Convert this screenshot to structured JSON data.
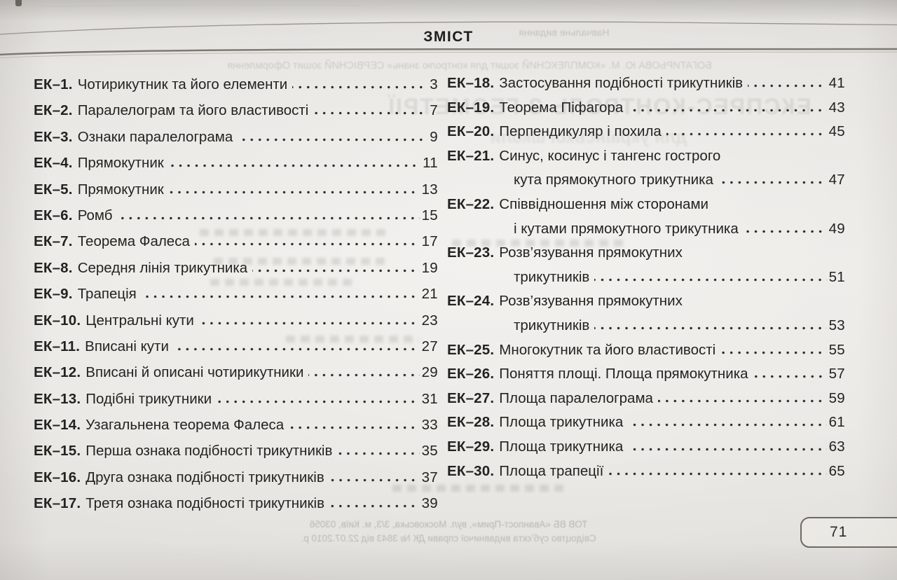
{
  "header": {
    "title": "ЗМІСТ"
  },
  "toc": {
    "left": [
      {
        "label": "ЕК–1.",
        "title": "Чотирикутник та його елементи",
        "page": "3"
      },
      {
        "label": "ЕК–2.",
        "title": "Паралелограм та його властивості",
        "page": "7"
      },
      {
        "label": "ЕК–3.",
        "title": "Ознаки паралелограма",
        "page": "9"
      },
      {
        "label": "ЕК–4.",
        "title": "Прямокутник",
        "page": "11"
      },
      {
        "label": "ЕК–5.",
        "title": "Прямокутник",
        "page": "13"
      },
      {
        "label": "ЕК–6.",
        "title": "Ромб",
        "page": "15"
      },
      {
        "label": "ЕК–7.",
        "title": "Теорема Фалеса",
        "page": "17"
      },
      {
        "label": "ЕК–8.",
        "title": "Середня лінія трикутника",
        "page": "19"
      },
      {
        "label": "ЕК–9.",
        "title": "Трапеція",
        "page": "21"
      },
      {
        "label": "ЕК–10.",
        "title": "Центральні кути",
        "page": "23"
      },
      {
        "label": "ЕК–11.",
        "title": "Вписані кути",
        "page": "27"
      },
      {
        "label": "ЕК–12.",
        "title": "Вписані й описані чотирикутники",
        "page": "29"
      },
      {
        "label": "ЕК–13.",
        "title": "Подібні трикутники",
        "page": "31"
      },
      {
        "label": "ЕК–14.",
        "title": "Узагальнена теорема Фалеса",
        "page": "33"
      },
      {
        "label": "ЕК–15.",
        "title": "Перша ознака подібності трикутників",
        "page": "35"
      },
      {
        "label": "ЕК–16.",
        "title": "Друга ознака подібності трикутників",
        "page": "37"
      },
      {
        "label": "ЕК–17.",
        "title": "Третя ознака подібності трикутників",
        "page": "39"
      }
    ],
    "right": [
      {
        "label": "ЕК–18.",
        "title": "Застосування подібності трикутників",
        "page": "41"
      },
      {
        "label": "ЕК–19.",
        "title": "Теорема Піфагора",
        "page": "43"
      },
      {
        "label": "ЕК–20.",
        "title": "Перпендикуляр і похила",
        "page": "45"
      },
      {
        "label": "ЕК–21.",
        "title": "Синус, косинус і тангенс гострого",
        "title2": "кута прямокутного трикутника",
        "page": "47"
      },
      {
        "label": "ЕК–22.",
        "title": "Співвідношення між сторонами",
        "title2": "і кутами прямокутного трикутника",
        "page": "49"
      },
      {
        "label": "ЕК–23.",
        "title": "Розв’язування прямокутних",
        "title2": "трикутників",
        "page": "51"
      },
      {
        "label": "ЕК–24.",
        "title": "Розв’язування прямокутних",
        "title2": "трикутників",
        "page": "53"
      },
      {
        "label": "ЕК–25.",
        "title": "Многокутник та його властивості",
        "page": "55"
      },
      {
        "label": "ЕК–26.",
        "title": "Поняття площі. Площа прямокутника",
        "page": "57"
      },
      {
        "label": "ЕК–27.",
        "title": "Площа паралелограма",
        "page": "59"
      },
      {
        "label": "ЕК–28.",
        "title": "Площа трикутника",
        "page": "61"
      },
      {
        "label": "ЕК–29.",
        "title": "Площа трикутника",
        "page": "63"
      },
      {
        "label": "ЕК–30.",
        "title": "Площа трапеції",
        "page": "65"
      }
    ]
  },
  "footer": {
    "page_number": "71"
  },
  "bleedthrough": {
    "top_small": "Навчальне видання",
    "authors_row": "БОГАТИРЬОВА Ю. М.  «КОМПЛЕКСНИЙ зошит для контролю знань»  СЕРВІСНИЙ зошит  Оформлення",
    "big_title": "ЕКСПРЕС-КОНТРОЛЬ З ГЕОМЕТРІЇ",
    "big_subtitle": "для української школи",
    "imprint_line1": "ТОВ ВБ «Аванпост-Прим», вул. Московська, 3/3, м. Київ, 03056",
    "imprint_line2": "Свідоцтво суб’єкта видавничої справи ДК № 3843 від 22.07.2010 р."
  },
  "colors": {
    "paper": "#e9e7e3",
    "ink": "#232220",
    "rule": "#7e7a72"
  }
}
